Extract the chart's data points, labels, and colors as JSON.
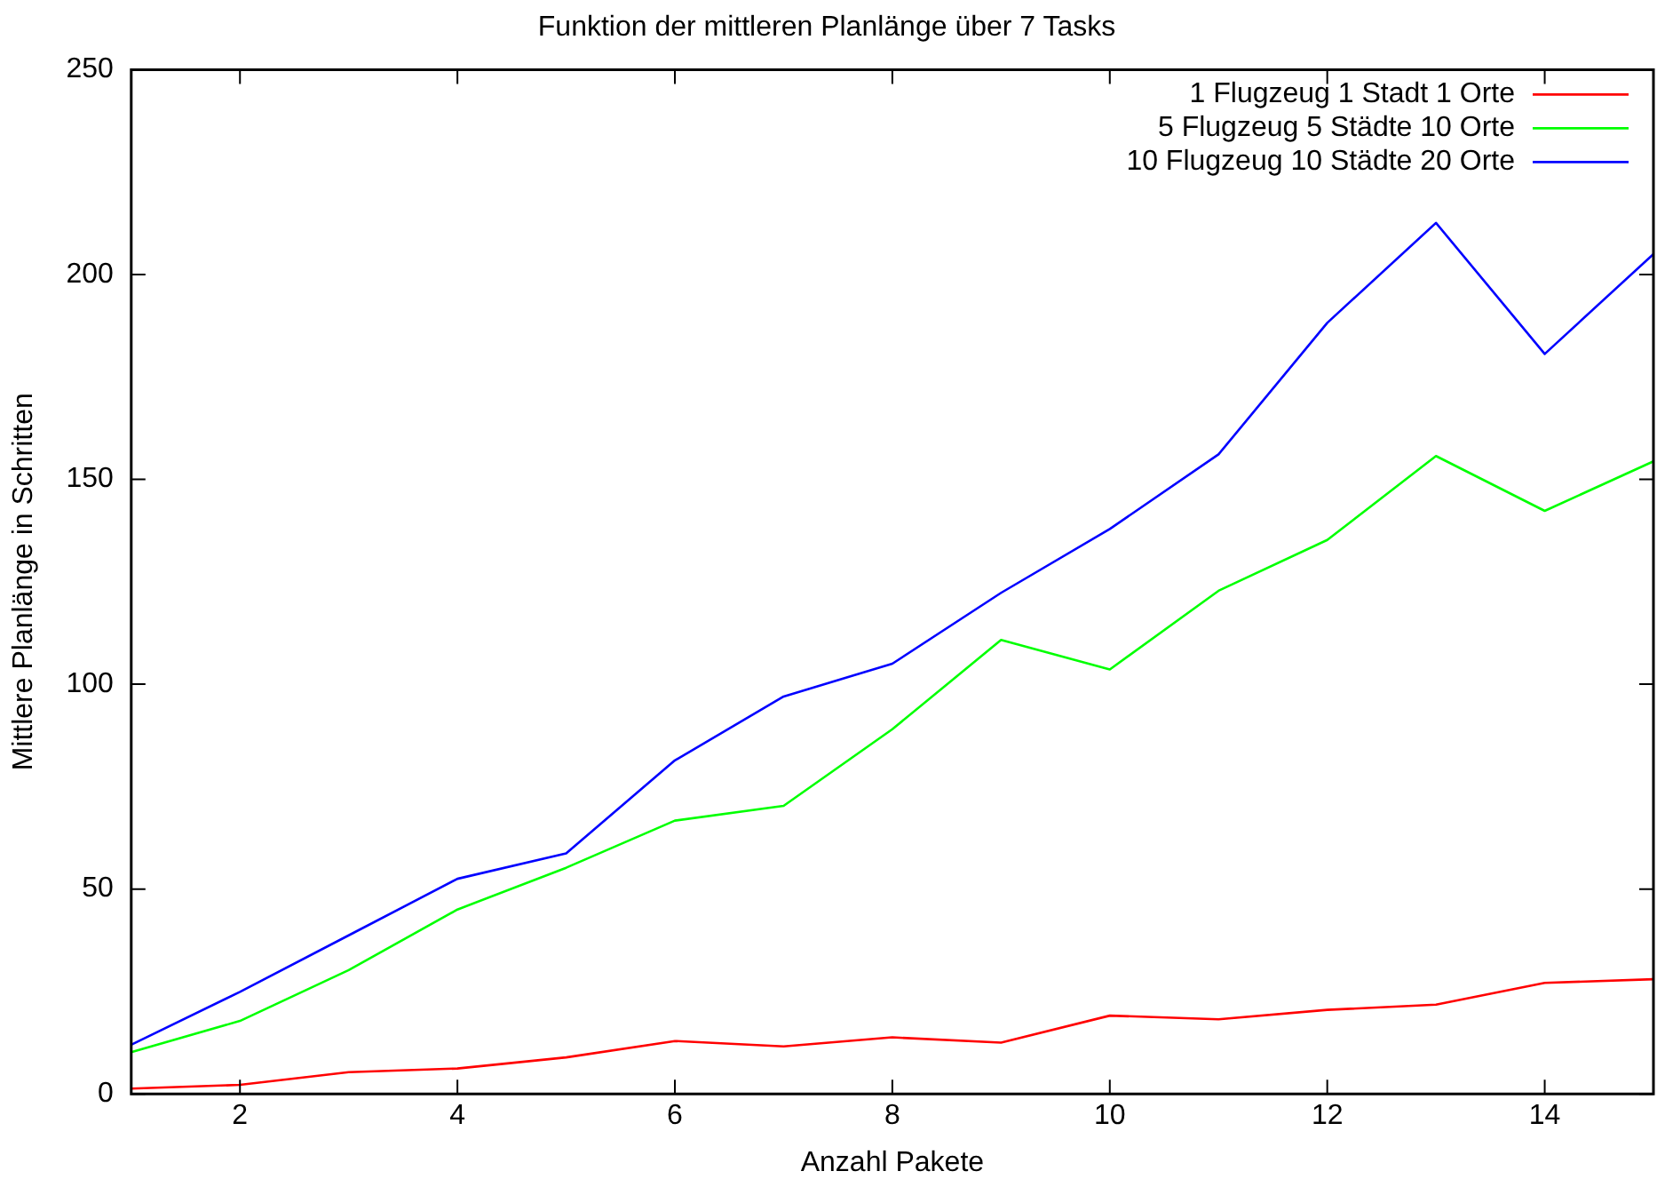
{
  "chart_data": {
    "type": "line",
    "title": "Funktion der mittleren Planlänge über 7 Tasks",
    "xlabel": "Anzahl Pakete",
    "ylabel": "Mittlere Planlänge in Schritten",
    "x": [
      1,
      2,
      3,
      4,
      5,
      6,
      7,
      8,
      9,
      10,
      11,
      12,
      13,
      14,
      15
    ],
    "xlim": [
      1,
      15
    ],
    "xticks": [
      2,
      4,
      6,
      8,
      10,
      12,
      14
    ],
    "ylim": [
      0,
      250
    ],
    "yticks": [
      0,
      50,
      100,
      150,
      200,
      250
    ],
    "grid": false,
    "legend": "top right",
    "marker": "none",
    "line_style": "solid",
    "series": [
      {
        "name": "1 Flugzeug 1 Stadt 1 Orte",
        "color": "#ff0000",
        "values": [
          1.3,
          2.2,
          5.3,
          6.2,
          8.9,
          12.9,
          11.6,
          13.8,
          12.5,
          19.1,
          18.2,
          20.5,
          21.8,
          27.1,
          28
        ]
      },
      {
        "name": "5 Flugzeug 5 Städte 10 Orte",
        "color": "#00ff00",
        "values": [
          10.2,
          17.8,
          30.2,
          45,
          55.2,
          66.7,
          70.3,
          89,
          110.8,
          103.6,
          122.8,
          135.2,
          155.7,
          142.3,
          154.4
        ]
      },
      {
        "name": "10 Flugzeug 10 Städte 20 Orte",
        "color": "#0000ff",
        "values": [
          12,
          24.9,
          38.7,
          52.5,
          58.7,
          81.4,
          97,
          105,
          122.3,
          137.9,
          156.1,
          188.2,
          212.6,
          180.6,
          205
        ]
      }
    ]
  }
}
